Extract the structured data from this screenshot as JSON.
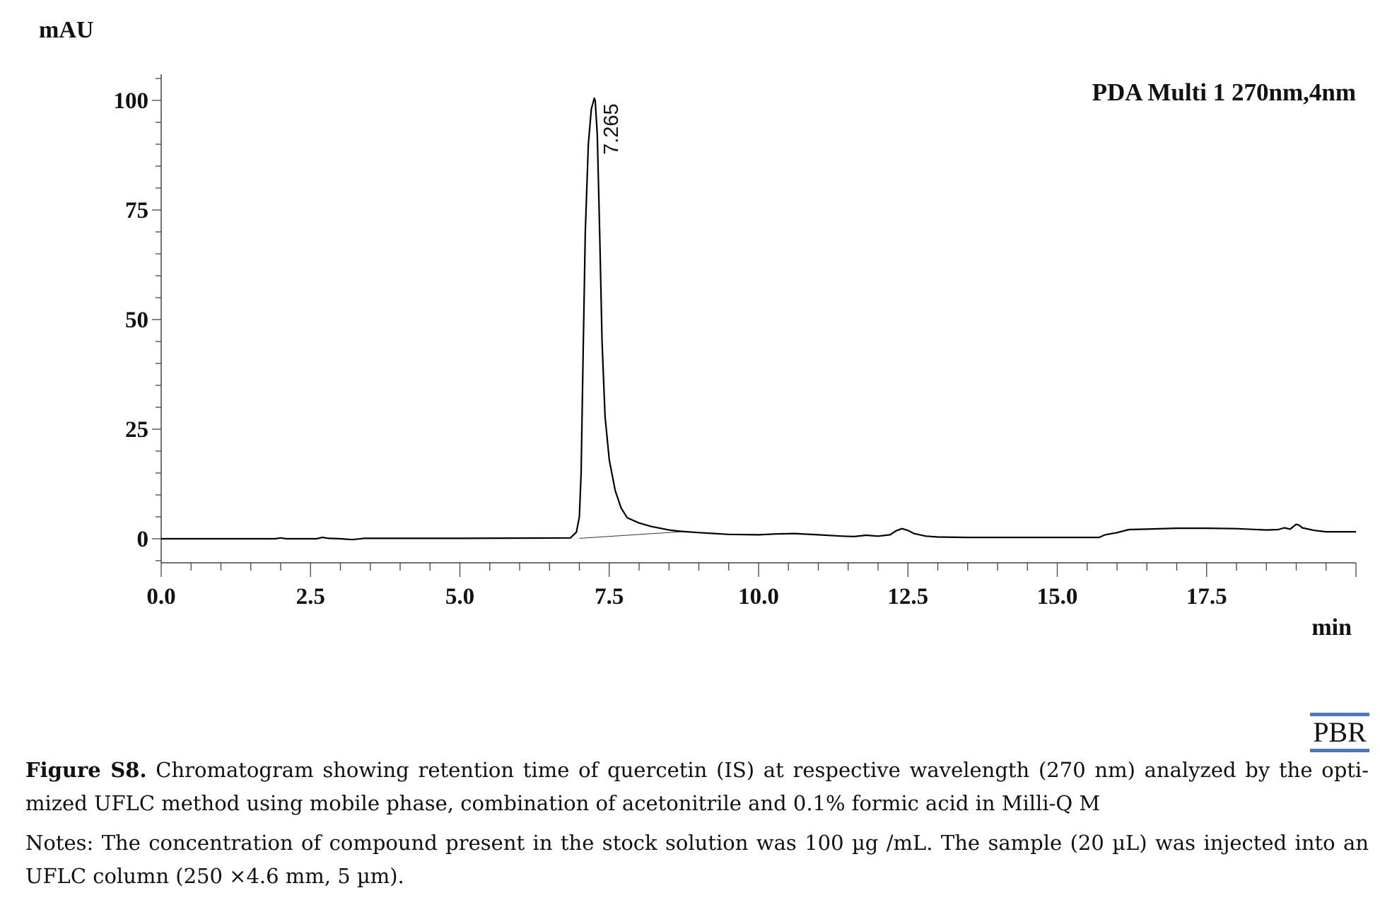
{
  "chart_data": {
    "type": "line",
    "ylabel": "mAU",
    "xlabel": "min",
    "legend": "PDA Multi 1 270nm,4nm",
    "legend_position": "top-right",
    "xlim": [
      0,
      20
    ],
    "ylim": [
      -5,
      105
    ],
    "x_ticks": [
      "0.0",
      "2.5",
      "5.0",
      "7.5",
      "10.0",
      "12.5",
      "15.0",
      "17.5"
    ],
    "y_ticks": [
      "0",
      "25",
      "50",
      "75",
      "100"
    ],
    "grid": false,
    "line_color": "#000000",
    "peak_annotations": [
      {
        "label": "7.265",
        "x": 7.265,
        "y": 100.5
      }
    ],
    "integration_baseline": {
      "x": [
        7.0,
        8.7
      ],
      "y": [
        0.1,
        1.6
      ]
    },
    "series": [
      {
        "x": [
          0,
          1.9,
          2.0,
          2.1,
          2.6,
          2.7,
          2.8,
          3.0,
          3.2,
          3.4,
          5.0,
          6.85,
          6.95,
          7.0,
          7.03,
          7.06,
          7.1,
          7.15,
          7.2,
          7.25,
          7.265,
          7.3,
          7.34,
          7.38,
          7.43,
          7.5,
          7.6,
          7.7,
          7.8,
          8.0,
          8.2,
          8.5,
          8.7,
          9.0,
          9.5,
          10.0,
          10.3,
          10.6,
          11.0,
          11.4,
          11.6,
          11.8,
          12.0,
          12.2,
          12.3,
          12.4,
          12.5,
          12.6,
          12.8,
          13.0,
          13.5,
          14.5,
          15.5,
          15.7,
          15.8,
          16.0,
          16.2,
          16.5,
          17.0,
          17.5,
          18.0,
          18.5,
          18.7,
          18.8,
          18.9,
          19.0,
          19.05,
          19.1,
          19.3,
          19.5,
          20.0
        ],
        "y": [
          0,
          0,
          0.2,
          0,
          0,
          0.3,
          0.1,
          0,
          -0.2,
          0.1,
          0.1,
          0.2,
          1.5,
          5,
          15,
          40,
          70,
          90,
          98,
          100.5,
          100,
          92,
          70,
          45,
          28,
          18,
          11,
          7,
          4.8,
          3.6,
          2.8,
          2.0,
          1.7,
          1.4,
          1.0,
          0.9,
          1.1,
          1.2,
          0.9,
          0.6,
          0.5,
          0.8,
          0.6,
          0.9,
          1.8,
          2.3,
          1.9,
          1.2,
          0.6,
          0.4,
          0.3,
          0.3,
          0.3,
          0.3,
          0.9,
          1.4,
          2.1,
          2.2,
          2.4,
          2.4,
          2.3,
          2.0,
          2.1,
          2.5,
          2.2,
          3.3,
          3.1,
          2.5,
          1.9,
          1.6,
          1.6
        ]
      }
    ]
  },
  "figure": {
    "caption_label": "Figure S8.",
    "caption_text": " Chromatogram showing retention time of quercetin (IS) at respective wavelength (270 nm) analyzed by the opti-mized UFLC method using mobile phase, combination of acetonitrile and 0.1% formic acid in Milli-Q M",
    "notes": "Notes: The concentration of compound present in the stock solution was 100 µg /mL. The sample (20 µL) was injected into an UFLC column (250 ×4.6 mm, 5 µm).",
    "logo_text": "PBR",
    "logo_color": "#4a79b8"
  }
}
